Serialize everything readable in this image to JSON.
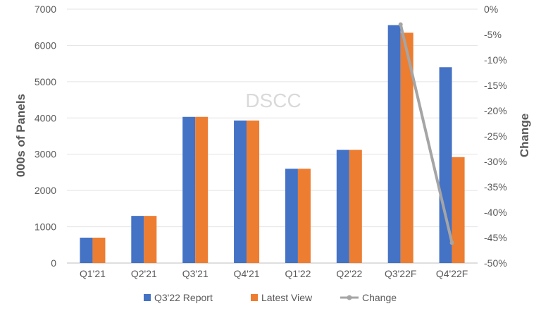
{
  "chart_data": {
    "type": "bar",
    "watermark": "DSCC",
    "categories": [
      "Q1'21",
      "Q2'21",
      "Q3'21",
      "Q4'21",
      "Q1'22",
      "Q2'22",
      "Q3'22F",
      "Q4'22F"
    ],
    "series": [
      {
        "name": "Q3'22 Report",
        "type": "bar",
        "axis": "left",
        "color": "#4472C4",
        "values": [
          700,
          1300,
          4030,
          3930,
          2600,
          3120,
          6560,
          5400
        ]
      },
      {
        "name": "Latest View",
        "type": "bar",
        "axis": "left",
        "color": "#ED7D31",
        "values": [
          700,
          1300,
          4030,
          3930,
          2600,
          3120,
          6350,
          2920
        ]
      },
      {
        "name": "Change",
        "type": "line",
        "axis": "right",
        "color": "#A5A5A5",
        "x": [
          "Q3'22F",
          "Q4'22F"
        ],
        "values": [
          -3,
          -46
        ]
      }
    ],
    "ylabel": "000s of Panels",
    "ylim": [
      0,
      7000
    ],
    "yticks": [
      "0",
      "1000",
      "2000",
      "3000",
      "4000",
      "5000",
      "6000",
      "7000"
    ],
    "y2label": "Change",
    "y2lim": [
      -50,
      0
    ],
    "y2ticks": [
      "0%",
      "-5%",
      "-10%",
      "-15%",
      "-20%",
      "-25%",
      "-30%",
      "-35%",
      "-40%",
      "-45%",
      "-50%"
    ],
    "legend": "bottom",
    "grid": true
  }
}
